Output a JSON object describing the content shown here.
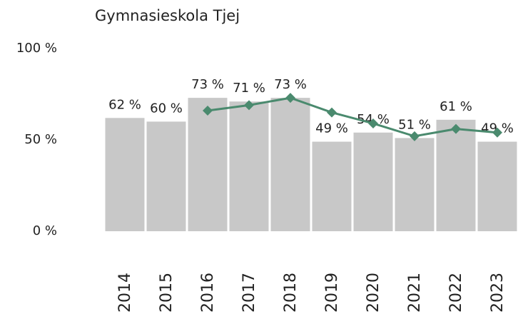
{
  "chart_data": {
    "type": "bar",
    "title": "Gymnasieskola Tjej",
    "categories": [
      "2014",
      "2015",
      "2016",
      "2017",
      "2018",
      "2019",
      "2020",
      "2021",
      "2022",
      "2023"
    ],
    "series": [
      {
        "color": "#c8c8c8",
        "values": [
          62,
          60,
          73,
          71,
          73,
          49,
          54,
          51,
          61,
          49
        ],
        "value_labels": [
          "62 %",
          "60 %",
          "73 %",
          "71 %",
          "73 %",
          "49 %",
          "54 %",
          "51 %",
          "61 %",
          "49 %"
        ]
      },
      {
        "type": "line",
        "color": "#4a8a6e",
        "values": [
          null,
          null,
          66,
          69,
          73,
          65,
          59,
          52,
          56,
          54
        ]
      }
    ],
    "ylim": [
      0,
      100
    ],
    "yticks": [
      {
        "value": 0,
        "label": "0 %"
      },
      {
        "value": 50,
        "label": "50 %"
      },
      {
        "value": 100,
        "label": "100 %"
      }
    ],
    "grid": false
  }
}
